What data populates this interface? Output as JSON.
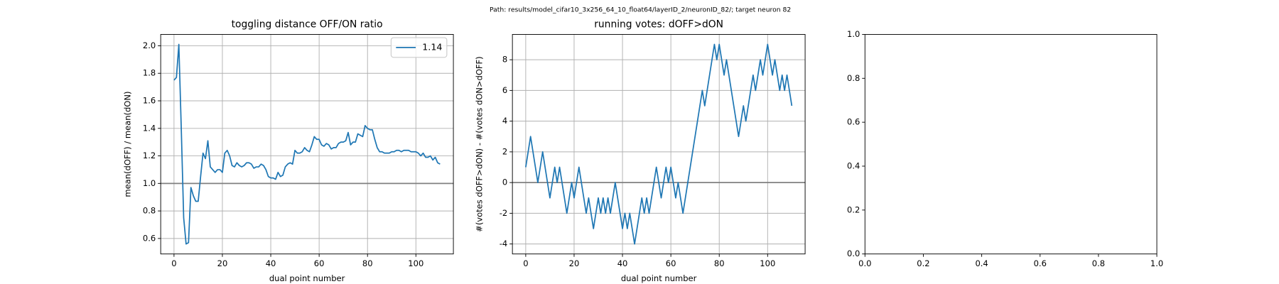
{
  "suptitle": "Path: results/model_cifar10_3x256_64_10_float64/layerID_2/neuronID_82/; target neuron 82",
  "chart_data": [
    {
      "type": "line",
      "title": "toggling distance OFF/ON ratio",
      "xlabel": "dual point number",
      "ylabel": "mean(dOFF) / mean(dON)",
      "x": [
        0,
        1,
        2,
        3,
        4,
        5,
        6,
        7,
        8,
        9,
        10,
        11,
        12,
        13,
        14,
        15,
        16,
        17,
        18,
        19,
        20,
        21,
        22,
        23,
        24,
        25,
        26,
        27,
        28,
        29,
        30,
        31,
        32,
        33,
        34,
        35,
        36,
        37,
        38,
        39,
        40,
        41,
        42,
        43,
        44,
        45,
        46,
        47,
        48,
        49,
        50,
        51,
        52,
        53,
        54,
        55,
        56,
        57,
        58,
        59,
        60,
        61,
        62,
        63,
        64,
        65,
        66,
        67,
        68,
        69,
        70,
        71,
        72,
        73,
        74,
        75,
        76,
        77,
        78,
        79,
        80,
        81,
        82,
        83,
        84,
        85,
        86,
        87,
        88,
        89,
        90,
        91,
        92,
        93,
        94,
        95,
        96,
        97,
        98,
        99,
        100,
        101,
        102,
        103,
        104,
        105,
        106,
        107,
        108,
        109,
        110
      ],
      "series": [
        {
          "name": "1.14",
          "color": "#1f77b4",
          "values": [
            1.75,
            1.77,
            2.01,
            1.4,
            0.75,
            0.56,
            0.57,
            0.97,
            0.91,
            0.87,
            0.87,
            1.05,
            1.22,
            1.18,
            1.31,
            1.12,
            1.1,
            1.08,
            1.1,
            1.1,
            1.08,
            1.22,
            1.24,
            1.2,
            1.13,
            1.12,
            1.15,
            1.13,
            1.12,
            1.13,
            1.15,
            1.15,
            1.14,
            1.11,
            1.12,
            1.12,
            1.14,
            1.13,
            1.1,
            1.05,
            1.04,
            1.04,
            1.03,
            1.08,
            1.05,
            1.06,
            1.12,
            1.14,
            1.15,
            1.14,
            1.24,
            1.22,
            1.22,
            1.23,
            1.26,
            1.24,
            1.23,
            1.28,
            1.34,
            1.32,
            1.32,
            1.28,
            1.27,
            1.29,
            1.28,
            1.25,
            1.26,
            1.26,
            1.29,
            1.3,
            1.3,
            1.31,
            1.37,
            1.28,
            1.3,
            1.3,
            1.36,
            1.35,
            1.34,
            1.42,
            1.4,
            1.39,
            1.39,
            1.32,
            1.26,
            1.23,
            1.23,
            1.22,
            1.22,
            1.22,
            1.23,
            1.23,
            1.24,
            1.24,
            1.23,
            1.24,
            1.24,
            1.24,
            1.23,
            1.23,
            1.23,
            1.22,
            1.2,
            1.22,
            1.19,
            1.19,
            1.2,
            1.17,
            1.19,
            1.15,
            1.14
          ]
        }
      ],
      "hline": 1,
      "hline_color": "#808080",
      "xlim": [
        -5.5,
        115.5
      ],
      "xticks": [
        0,
        20,
        40,
        60,
        80,
        100
      ],
      "ylim": [
        0.4875,
        2.0825
      ],
      "yticks": [
        0.6,
        0.8,
        {
          "value": 1,
          "label": "1.0"
        },
        1.2,
        1.4,
        1.6,
        1.8,
        {
          "value": 2,
          "label": "2.0"
        }
      ],
      "grid": true,
      "legend": "upper right"
    },
    {
      "type": "line",
      "title": "running votes: dOFF>dON",
      "xlabel": "dual point number",
      "ylabel": "#(votes dOFF>dON) - #(votes dON>dOFF)",
      "x": [
        0,
        1,
        2,
        3,
        4,
        5,
        6,
        7,
        8,
        9,
        10,
        11,
        12,
        13,
        14,
        15,
        16,
        17,
        18,
        19,
        20,
        21,
        22,
        23,
        24,
        25,
        26,
        27,
        28,
        29,
        30,
        31,
        32,
        33,
        34,
        35,
        36,
        37,
        38,
        39,
        40,
        41,
        42,
        43,
        44,
        45,
        46,
        47,
        48,
        49,
        50,
        51,
        52,
        53,
        54,
        55,
        56,
        57,
        58,
        59,
        60,
        61,
        62,
        63,
        64,
        65,
        66,
        67,
        68,
        69,
        70,
        71,
        72,
        73,
        74,
        75,
        76,
        77,
        78,
        79,
        80,
        81,
        82,
        83,
        84,
        85,
        86,
        87,
        88,
        89,
        90,
        91,
        92,
        93,
        94,
        95,
        96,
        97,
        98,
        99,
        100,
        101,
        102,
        103,
        104,
        105,
        106,
        107,
        108,
        109,
        110
      ],
      "series": [
        {
          "color": "#1f77b4",
          "values": [
            1,
            2,
            3,
            2,
            1,
            0,
            1,
            2,
            1,
            0,
            -1,
            0,
            1,
            0,
            1,
            0,
            -1,
            -2,
            -1,
            0,
            -1,
            0,
            1,
            0,
            -1,
            -2,
            -1,
            -2,
            -3,
            -2,
            -1,
            -2,
            -1,
            -2,
            -1,
            -2,
            -1,
            0,
            -1,
            -2,
            -3,
            -2,
            -3,
            -2,
            -3,
            -4,
            -3,
            -2,
            -1,
            -2,
            -1,
            -2,
            -1,
            0,
            1,
            0,
            -1,
            0,
            1,
            0,
            1,
            0,
            -1,
            0,
            -1,
            -2,
            -1,
            0,
            1,
            2,
            3,
            4,
            5,
            6,
            5,
            6,
            7,
            8,
            9,
            8,
            9,
            8,
            7,
            8,
            7,
            6,
            5,
            4,
            3,
            4,
            5,
            4,
            5,
            6,
            7,
            6,
            7,
            8,
            7,
            8,
            9,
            8,
            7,
            8,
            7,
            6,
            7,
            6,
            7,
            6,
            5
          ]
        }
      ],
      "hline": 0,
      "hline_color": "#808080",
      "xlim": [
        -5.5,
        115.5
      ],
      "xticks": [
        0,
        20,
        40,
        60,
        80,
        100
      ],
      "ylim": [
        -4.65,
        9.65
      ],
      "yticks": [
        -4,
        -2,
        0,
        2,
        4,
        6,
        8
      ],
      "grid": true
    },
    {
      "type": "line",
      "series": [],
      "xlim": [
        0,
        1
      ],
      "xticks": [
        {
          "value": 0,
          "label": "0.0"
        },
        0.2,
        0.4,
        0.6,
        0.8,
        {
          "value": 1,
          "label": "1.0"
        }
      ],
      "ylim": [
        0,
        1
      ],
      "yticks": [
        {
          "value": 0,
          "label": "0.0"
        },
        0.2,
        0.4,
        0.6,
        0.8,
        {
          "value": 1,
          "label": "1.0"
        }
      ],
      "grid": false
    }
  ]
}
